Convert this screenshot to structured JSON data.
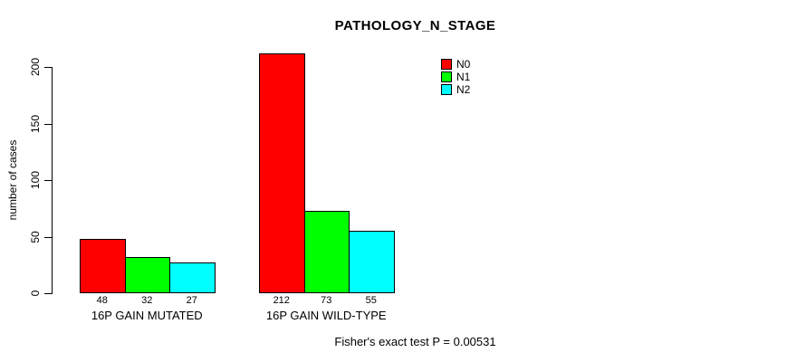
{
  "chart_data": {
    "type": "bar",
    "title": "PATHOLOGY_N_STAGE",
    "xlabel": "",
    "ylabel": "number of cases",
    "ylim": [
      0,
      200
    ],
    "yticks": [
      0,
      50,
      100,
      150,
      200
    ],
    "grid": false,
    "legend_position": "top-right",
    "categories": [
      "16P GAIN MUTATED",
      "16P GAIN WILD-TYPE"
    ],
    "series": [
      {
        "name": "N0",
        "color": "#ff0000",
        "values": [
          48,
          212
        ]
      },
      {
        "name": "N1",
        "color": "#00ff00",
        "values": [
          32,
          73
        ]
      },
      {
        "name": "N2",
        "color": "#00ffff",
        "values": [
          27,
          55
        ]
      }
    ],
    "bar_value_labels": true,
    "annotation": "Fisher's exact test P = 0.00531",
    "axis_color": "#000000",
    "background_color": "#ffffff"
  }
}
